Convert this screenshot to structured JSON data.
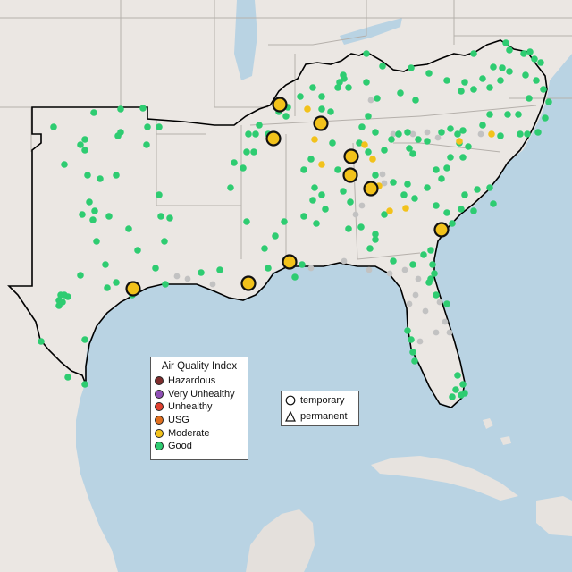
{
  "map": {
    "colors": {
      "water": "#b9d3e3",
      "land": "#ebe7e3",
      "mexico_land": "#e4e0dc",
      "region_outline": "#000000",
      "state_borders": "#b5b0ab"
    }
  },
  "legend_aqi": {
    "title": "Air Quality Index",
    "items": [
      {
        "label": "Hazardous",
        "color": "#7e2d2d"
      },
      {
        "label": "Very Unhealthy",
        "color": "#8f4fb5"
      },
      {
        "label": "Unhealthy",
        "color": "#e0402f"
      },
      {
        "label": "USG",
        "color": "#e06f1e"
      },
      {
        "label": "Moderate",
        "color": "#f2c21b"
      },
      {
        "label": "Good",
        "color": "#2ecc71"
      }
    ]
  },
  "legend_type": {
    "items": [
      {
        "label": "temporary",
        "icon": "circle"
      },
      {
        "label": "permanent",
        "icon": "triangle"
      }
    ]
  },
  "colors": {
    "good": "#2ecc71",
    "moderate": "#f2c21b",
    "no_data": "#c2c2c2"
  }
}
